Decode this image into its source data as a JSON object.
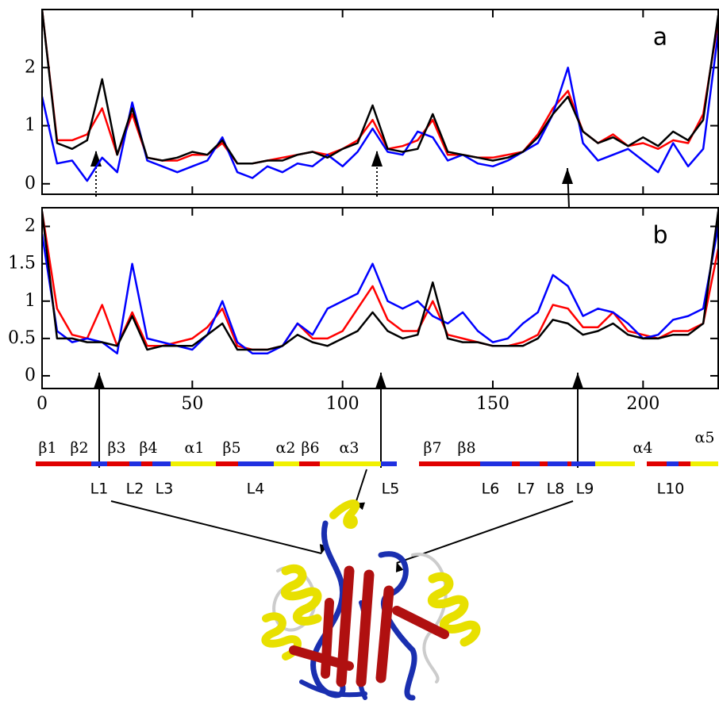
{
  "chart_data": [
    {
      "type": "line",
      "panel_label": "a",
      "x": [
        0,
        5,
        10,
        15,
        20,
        25,
        30,
        35,
        40,
        45,
        50,
        55,
        60,
        65,
        70,
        75,
        80,
        85,
        90,
        95,
        100,
        105,
        110,
        115,
        120,
        125,
        130,
        135,
        140,
        145,
        150,
        155,
        160,
        165,
        170,
        175,
        180,
        185,
        190,
        195,
        200,
        205,
        210,
        215,
        220,
        225
      ],
      "series": [
        {
          "color": "#ff0000",
          "values": [
            3.0,
            0.75,
            0.75,
            0.85,
            1.3,
            0.5,
            1.2,
            0.45,
            0.4,
            0.4,
            0.5,
            0.5,
            0.7,
            0.35,
            0.35,
            0.4,
            0.45,
            0.5,
            0.55,
            0.5,
            0.6,
            0.75,
            1.1,
            0.6,
            0.65,
            0.75,
            1.1,
            0.5,
            0.5,
            0.45,
            0.45,
            0.5,
            0.55,
            0.85,
            1.3,
            1.6,
            0.9,
            0.7,
            0.85,
            0.65,
            0.7,
            0.6,
            0.75,
            0.7,
            1.2,
            2.8
          ]
        },
        {
          "color": "#0000ff",
          "values": [
            1.5,
            0.35,
            0.4,
            0.05,
            0.45,
            0.2,
            1.4,
            0.4,
            0.3,
            0.2,
            0.3,
            0.4,
            0.8,
            0.2,
            0.1,
            0.3,
            0.2,
            0.35,
            0.3,
            0.5,
            0.3,
            0.55,
            0.95,
            0.55,
            0.5,
            0.9,
            0.8,
            0.4,
            0.5,
            0.35,
            0.3,
            0.4,
            0.55,
            0.7,
            1.2,
            2.0,
            0.7,
            0.4,
            0.5,
            0.6,
            0.4,
            0.2,
            0.7,
            0.3,
            0.6,
            2.6
          ]
        },
        {
          "color": "#000000",
          "values": [
            3.0,
            0.7,
            0.6,
            0.75,
            1.8,
            0.5,
            1.3,
            0.45,
            0.4,
            0.45,
            0.55,
            0.5,
            0.75,
            0.35,
            0.35,
            0.4,
            0.4,
            0.5,
            0.55,
            0.45,
            0.6,
            0.7,
            1.35,
            0.6,
            0.55,
            0.6,
            1.2,
            0.55,
            0.5,
            0.45,
            0.4,
            0.45,
            0.55,
            0.8,
            1.2,
            1.5,
            0.9,
            0.7,
            0.8,
            0.65,
            0.8,
            0.65,
            0.9,
            0.75,
            1.1,
            2.9
          ]
        }
      ],
      "xlim": [
        0,
        225
      ],
      "xticks": [
        0,
        50,
        100,
        150,
        200
      ],
      "xtick_labels": false,
      "ylim": [
        -0.18,
        3.0
      ],
      "yticks": [
        0,
        1,
        2
      ]
    },
    {
      "type": "line",
      "panel_label": "b",
      "x": [
        0,
        5,
        10,
        15,
        20,
        25,
        30,
        35,
        40,
        45,
        50,
        55,
        60,
        65,
        70,
        75,
        80,
        85,
        90,
        95,
        100,
        105,
        110,
        115,
        120,
        125,
        130,
        135,
        140,
        145,
        150,
        155,
        160,
        165,
        170,
        175,
        180,
        185,
        190,
        195,
        200,
        205,
        210,
        215,
        220,
        225
      ],
      "series": [
        {
          "color": "#ff0000",
          "values": [
            2.2,
            0.9,
            0.55,
            0.5,
            0.95,
            0.4,
            0.85,
            0.4,
            0.4,
            0.45,
            0.5,
            0.65,
            0.9,
            0.4,
            0.35,
            0.35,
            0.4,
            0.7,
            0.5,
            0.5,
            0.6,
            0.9,
            1.2,
            0.75,
            0.6,
            0.6,
            1.0,
            0.55,
            0.5,
            0.45,
            0.4,
            0.4,
            0.45,
            0.55,
            0.95,
            0.9,
            0.65,
            0.65,
            0.85,
            0.6,
            0.55,
            0.5,
            0.6,
            0.6,
            0.7,
            1.7
          ]
        },
        {
          "color": "#0000ff",
          "values": [
            1.9,
            0.6,
            0.45,
            0.5,
            0.45,
            0.3,
            1.5,
            0.5,
            0.45,
            0.4,
            0.35,
            0.55,
            1.0,
            0.45,
            0.3,
            0.3,
            0.4,
            0.7,
            0.55,
            0.9,
            1.0,
            1.1,
            1.5,
            1.0,
            0.9,
            1.0,
            0.8,
            0.7,
            0.85,
            0.6,
            0.45,
            0.5,
            0.7,
            0.85,
            1.35,
            1.2,
            0.8,
            0.9,
            0.85,
            0.7,
            0.5,
            0.55,
            0.75,
            0.8,
            0.9,
            2.0
          ]
        },
        {
          "color": "#000000",
          "values": [
            2.2,
            0.5,
            0.5,
            0.45,
            0.45,
            0.4,
            0.8,
            0.35,
            0.4,
            0.4,
            0.4,
            0.55,
            0.7,
            0.35,
            0.35,
            0.35,
            0.4,
            0.55,
            0.45,
            0.4,
            0.5,
            0.6,
            0.85,
            0.6,
            0.5,
            0.55,
            1.25,
            0.5,
            0.45,
            0.45,
            0.4,
            0.4,
            0.4,
            0.5,
            0.75,
            0.7,
            0.55,
            0.6,
            0.7,
            0.55,
            0.5,
            0.5,
            0.55,
            0.55,
            0.7,
            2.2
          ]
        }
      ],
      "xlim": [
        0,
        225
      ],
      "xticks": [
        0,
        50,
        100,
        150,
        200
      ],
      "xtick_labels": true,
      "ylim": [
        -0.17,
        2.25
      ],
      "yticks": [
        0,
        0.5,
        1,
        1.5,
        2
      ]
    }
  ],
  "secondary_structure": {
    "elements": [
      "β1",
      "β2",
      "β3",
      "β4",
      "α1",
      "β5",
      "α2",
      "β6",
      "α3",
      "β7",
      "β8",
      "α4",
      "α5"
    ],
    "loops": [
      "L1",
      "L2",
      "L3",
      "L4",
      "L5",
      "L6",
      "L7",
      "L8",
      "L9",
      "L10"
    ]
  }
}
